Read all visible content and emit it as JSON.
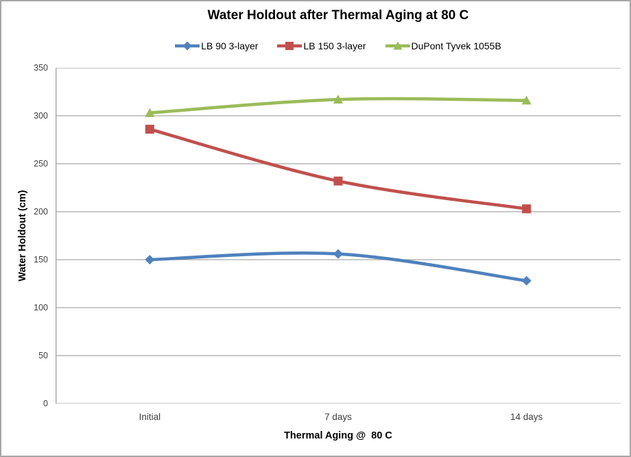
{
  "frame": {
    "background_color": "#ffffff",
    "border_color": "#a6a6a6"
  },
  "chart_data": {
    "type": "line",
    "title": "Water Holdout after Thermal Aging at 80 C",
    "xlabel": "Thermal Aging @  80 C",
    "ylabel": "Water Holdout (cm)",
    "categories": [
      "Initial",
      "7 days",
      "14 days"
    ],
    "series": [
      {
        "name": "LB 90 3-layer",
        "values": [
          150,
          156,
          128
        ],
        "color": "#4F81BD",
        "marker": "diamond"
      },
      {
        "name": "LB 150 3-layer",
        "values": [
          286,
          232,
          203
        ],
        "color": "#C0504D",
        "marker": "square"
      },
      {
        "name": "DuPont Tyvek 1055B",
        "values": [
          303,
          317,
          316
        ],
        "color": "#9BBB59",
        "marker": "triangle"
      }
    ],
    "ylim": [
      0,
      350
    ],
    "yticks": [
      350,
      300,
      250,
      200,
      150,
      100,
      50,
      0
    ],
    "grid": true,
    "smooth_lines": true,
    "legend_position": "top",
    "gridline_color": "#a6a6a6",
    "axis_line_color": "#a6a6a6",
    "tick_label_color": "#404040",
    "title_color": "#000000"
  }
}
